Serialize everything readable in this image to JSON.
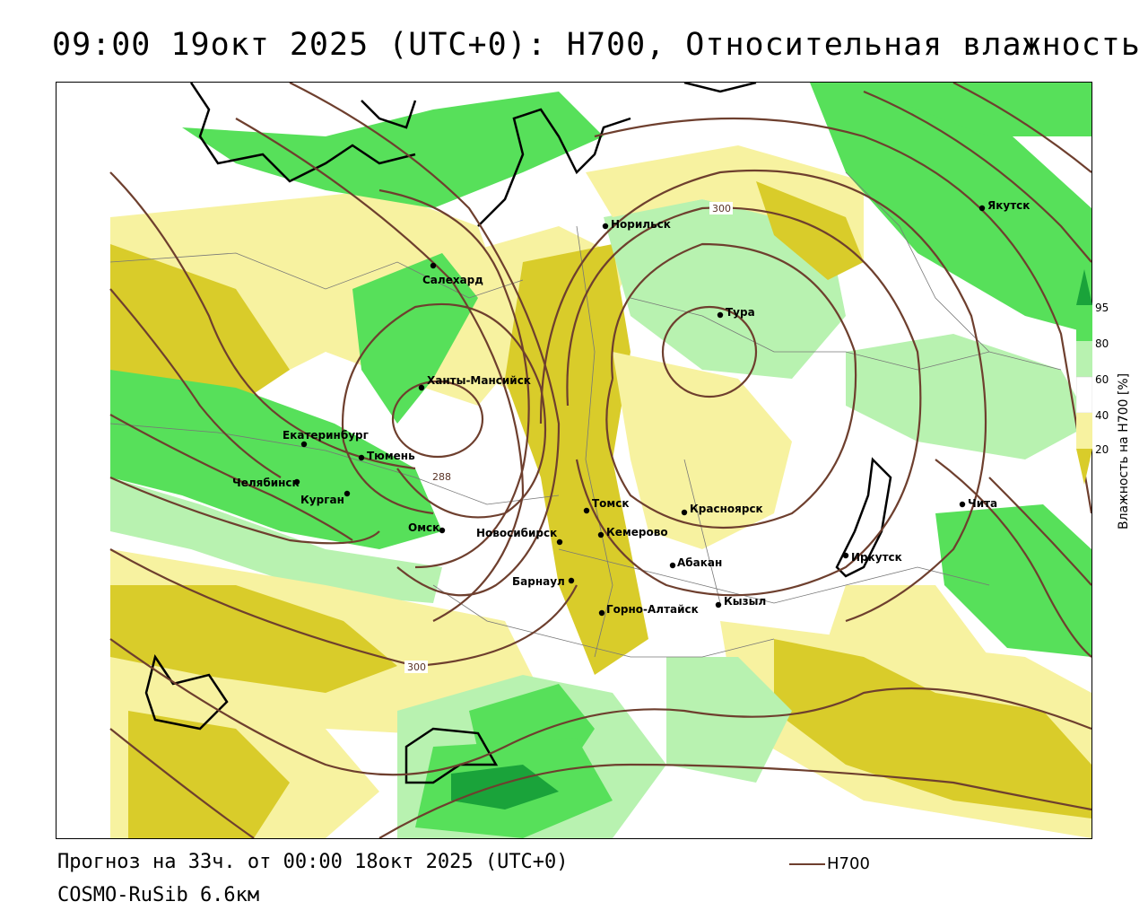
{
  "title": "09:00 19окт 2025 (UTC+0): H700, Относительная влажность",
  "footer": {
    "forecast": "Прогноз на 33ч. от 00:00 18окт 2025 (UTC+0)",
    "model": "COSMO-RuSib 6.6км"
  },
  "legend": {
    "line_label": "H700",
    "line_color": "#6e3f2e"
  },
  "colorbar": {
    "title": "Влажность на H700 [%]",
    "ticks": [
      "95",
      "80",
      "60",
      "40",
      "20"
    ],
    "colors": {
      "very_dry": "#d9cc2a",
      "dry": "#f7f2a0",
      "neutral": "#ffffff",
      "moist": "#b8f2b0",
      "wet": "#57e05a",
      "very_wet": "#1aa33a"
    }
  },
  "cities": [
    {
      "name": "Салехард",
      "key": "salekhard"
    },
    {
      "name": "Норильск",
      "key": "norilsk"
    },
    {
      "name": "Якутск",
      "key": "yakutsk"
    },
    {
      "name": "Тура",
      "key": "tura"
    },
    {
      "name": "Ханты-Мансийск",
      "key": "khanty"
    },
    {
      "name": "Екатеринбург",
      "key": "ekb"
    },
    {
      "name": "Тюмень",
      "key": "tyumen"
    },
    {
      "name": "Челябинск",
      "key": "chelyabinsk"
    },
    {
      "name": "Курган",
      "key": "kurgan"
    },
    {
      "name": "Омск",
      "key": "omsk"
    },
    {
      "name": "Новосибирск",
      "key": "novosibirsk"
    },
    {
      "name": "Томск",
      "key": "tomsk"
    },
    {
      "name": "Кемерово",
      "key": "kemerovo"
    },
    {
      "name": "Красноярск",
      "key": "krasnoyarsk"
    },
    {
      "name": "Абакан",
      "key": "abakan"
    },
    {
      "name": "Барнаул",
      "key": "barnaul"
    },
    {
      "name": "Горно-Алтайск",
      "key": "gornoaltaysk"
    },
    {
      "name": "Кызыл",
      "key": "kyzyl"
    },
    {
      "name": "Иркутск",
      "key": "irkutsk"
    },
    {
      "name": "Чита",
      "key": "chita"
    }
  ],
  "contour_labels": [
    "300",
    "288",
    "300"
  ]
}
